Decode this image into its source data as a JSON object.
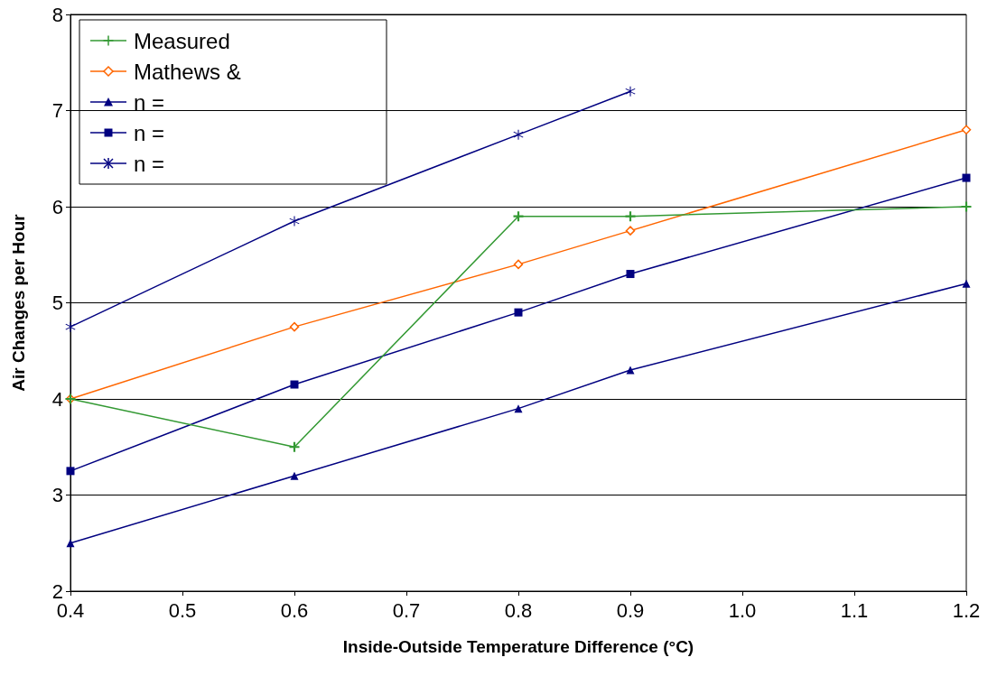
{
  "chart_data": {
    "type": "line",
    "xlabel": "Inside-Outside Temperature Difference (°C)",
    "ylabel": "Air Changes per Hour",
    "x": [
      0.4,
      0.6,
      0.8,
      0.9,
      1.2
    ],
    "series": [
      {
        "name": "Measured",
        "color": "#339933",
        "marker": "cross",
        "values": [
          4.0,
          3.5,
          5.9,
          5.9,
          6.0
        ]
      },
      {
        "name": "Mathews &",
        "color": "#ff6600",
        "marker": "diamond",
        "values": [
          4.0,
          4.75,
          5.4,
          5.75,
          6.8
        ]
      },
      {
        "name": "n =",
        "color": "#000080",
        "marker": "triangle",
        "values": [
          2.5,
          3.2,
          3.9,
          4.3,
          5.2
        ]
      },
      {
        "name": "n =",
        "color": "#000080",
        "marker": "square",
        "values": [
          3.25,
          4.15,
          4.9,
          5.3,
          6.3
        ]
      },
      {
        "name": "n =",
        "color": "#000080",
        "marker": "star",
        "values": [
          4.75,
          5.85,
          6.75,
          7.2,
          null
        ]
      }
    ],
    "xlim": [
      0.4,
      1.2
    ],
    "xticks": [
      0.4,
      0.5,
      0.6,
      0.7,
      0.8,
      0.9,
      {
        "value": 1,
        "label": "1.0"
      },
      1.1,
      1.2
    ],
    "ylim": [
      2,
      8
    ],
    "yticks": [
      2,
      3,
      4,
      5,
      6,
      7,
      8
    ],
    "grid": "y",
    "legend": "top left",
    "line_style": "solid"
  }
}
